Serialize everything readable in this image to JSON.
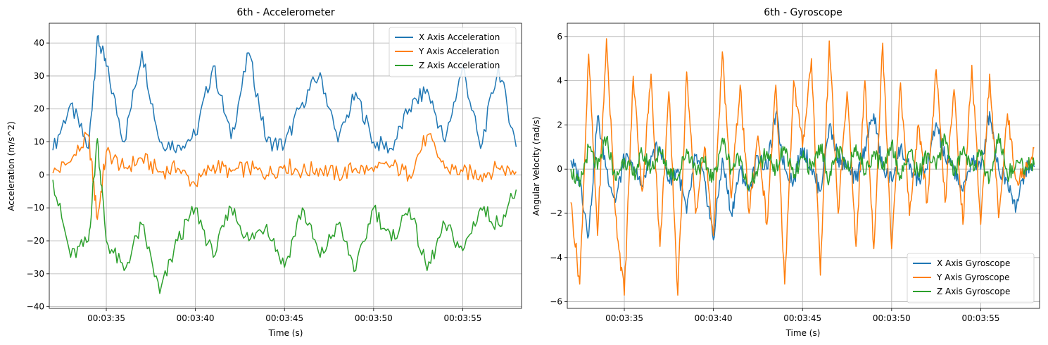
{
  "figure": {
    "title_left": "6th - Accelerometer",
    "title_right": "6th - Gyroscope"
  },
  "chart_data": [
    {
      "type": "line",
      "title": "6th - Accelerometer",
      "xlabel": "Time (s)",
      "ylabel": "Acceleration (m/s^2)",
      "x_unit": "seconds after 00:03:30",
      "xlim": [
        31.8,
        58.3
      ],
      "ylim": [
        -40.5,
        46
      ],
      "xticks": [
        35,
        40,
        45,
        50,
        55
      ],
      "xtick_labels": [
        "00:03:35",
        "00:03:40",
        "00:03:45",
        "00:03:50",
        "00:03:55"
      ],
      "yticks": [
        -40,
        -30,
        -20,
        -10,
        0,
        10,
        20,
        30,
        40
      ],
      "ytick_labels": [
        "−40",
        "−30",
        "−20",
        "−10",
        "0",
        "10",
        "20",
        "30",
        "40"
      ],
      "grid": true,
      "legend_position": "top-right",
      "x": [
        32.0,
        33.0,
        34.0,
        34.5,
        35.0,
        36.0,
        37.0,
        38.0,
        39.0,
        40.0,
        41.0,
        42.0,
        43.0,
        44.0,
        45.0,
        46.0,
        47.0,
        48.0,
        49.0,
        50.0,
        51.0,
        52.0,
        53.0,
        54.0,
        55.0,
        56.0,
        57.0,
        58.0
      ],
      "series": [
        {
          "name": "X Axis Acceleration",
          "color": "#1f77b4",
          "values": [
            7.5,
            21.5,
            8,
            42,
            33,
            10,
            37.5,
            10,
            9,
            12,
            33,
            11,
            37,
            10,
            9,
            22,
            31,
            10,
            25,
            10,
            8,
            20,
            26,
            10,
            33,
            8,
            33,
            8.5
          ]
        },
        {
          "name": "Y Axis Acceleration",
          "color": "#ff7f0e",
          "values": [
            0.5,
            4,
            12,
            -13.5,
            7,
            2,
            5,
            1,
            2,
            -3,
            3,
            1,
            2,
            0,
            3,
            1,
            2,
            0,
            2,
            1,
            3,
            0,
            12,
            2,
            1,
            0,
            2,
            1
          ]
        },
        {
          "name": "Z Axis Acceleration",
          "color": "#2ca02c",
          "values": [
            -1.5,
            -25,
            -20,
            11,
            -20,
            -29,
            -15,
            -36,
            -20,
            -10,
            -25,
            -10,
            -20,
            -15,
            -28,
            -10,
            -25,
            -15,
            -29,
            -10,
            -20,
            -10,
            -29,
            -15,
            -23,
            -10,
            -15,
            -4.5
          ]
        }
      ]
    },
    {
      "type": "line",
      "title": "6th - Gyroscope",
      "xlabel": "Time (s)",
      "ylabel": "Angular Velocity (rad/s)",
      "x_unit": "seconds after 00:03:30",
      "xlim": [
        31.8,
        58.3
      ],
      "ylim": [
        -6.3,
        6.6
      ],
      "xticks": [
        35,
        40,
        45,
        50,
        55
      ],
      "xtick_labels": [
        "00:03:35",
        "00:03:40",
        "00:03:45",
        "00:03:50",
        "00:03:55"
      ],
      "yticks": [
        -6,
        -4,
        -2,
        0,
        2,
        4,
        6
      ],
      "ytick_labels": [
        "−6",
        "−4",
        "−2",
        "0",
        "2",
        "4",
        "6"
      ],
      "grid": true,
      "legend_position": "bottom-right",
      "x": [
        32.0,
        32.5,
        33.0,
        33.5,
        34.0,
        34.5,
        35.0,
        35.5,
        36.0,
        36.5,
        37.0,
        37.5,
        38.0,
        38.5,
        39.0,
        39.5,
        40.0,
        40.5,
        41.0,
        41.5,
        42.0,
        42.5,
        43.0,
        43.5,
        44.0,
        44.5,
        45.0,
        45.5,
        46.0,
        46.5,
        47.0,
        47.5,
        48.0,
        48.5,
        49.0,
        49.5,
        50.0,
        50.5,
        51.0,
        51.5,
        52.0,
        52.5,
        53.0,
        53.5,
        54.0,
        54.5,
        55.0,
        55.5,
        56.0,
        56.5,
        57.0,
        57.5,
        58.0
      ],
      "series": [
        {
          "name": "X Axis Gyroscope",
          "color": "#1f77b4",
          "values": [
            0.4,
            -0.5,
            -3,
            2.4,
            0,
            -1.5,
            0.5,
            0,
            -0.8,
            0.6,
            1,
            -0.5,
            0,
            -2,
            0.6,
            -0.5,
            -3.2,
            0.5,
            -2,
            0,
            -1,
            0.6,
            0,
            2.5,
            0,
            -0.5,
            1,
            0,
            -1,
            2,
            0.5,
            0,
            -0.5,
            1,
            2.5,
            0,
            -0.5,
            1,
            0,
            -0.5,
            0,
            2.1,
            0.5,
            0,
            -1,
            0.5,
            0,
            2.6,
            0,
            -0.5,
            -1.7,
            0,
            0.1
          ]
        },
        {
          "name": "Y Axis Gyroscope",
          "color": "#ff7f0e",
          "values": [
            -1.5,
            -5.2,
            5.2,
            -3,
            5.9,
            -2,
            -5.7,
            4.2,
            -1,
            4.3,
            -3.5,
            3.5,
            -5.7,
            4.4,
            -2,
            1,
            -3,
            5.3,
            -1.3,
            3.8,
            -2,
            1.5,
            -2.5,
            3.8,
            -5.2,
            4,
            1,
            5,
            -4.8,
            5.8,
            -2,
            3.5,
            -3.5,
            4,
            -3.6,
            5.7,
            -3.6,
            3.9,
            -2.1,
            2,
            -1.5,
            4.5,
            -1.5,
            3.6,
            -2.5,
            4.7,
            -2.5,
            4.3,
            -2.2,
            2.5,
            -0.5,
            -0.1,
            0.95
          ]
        },
        {
          "name": "Z Axis Gyroscope",
          "color": "#2ca02c",
          "values": [
            0,
            -0.8,
            1,
            0,
            1.4,
            -0.5,
            0.5,
            -0.3,
            0.7,
            0,
            0.8,
            0,
            -0.4,
            0.9,
            0,
            0.3,
            -0.5,
            1.4,
            0,
            0.6,
            -0.9,
            0,
            0.8,
            0,
            1,
            -0.4,
            0.5,
            0,
            1.1,
            -0.5,
            0.9,
            0,
            1.1,
            -0.2,
            0.8,
            0,
            1.2,
            -0.3,
            0.8,
            -0.2,
            0.7,
            0,
            1.5,
            -0.3,
            0.9,
            0.2,
            0.6,
            -0.5,
            1.6,
            -0.3,
            0.4,
            0.1,
            0.2
          ]
        }
      ]
    }
  ]
}
